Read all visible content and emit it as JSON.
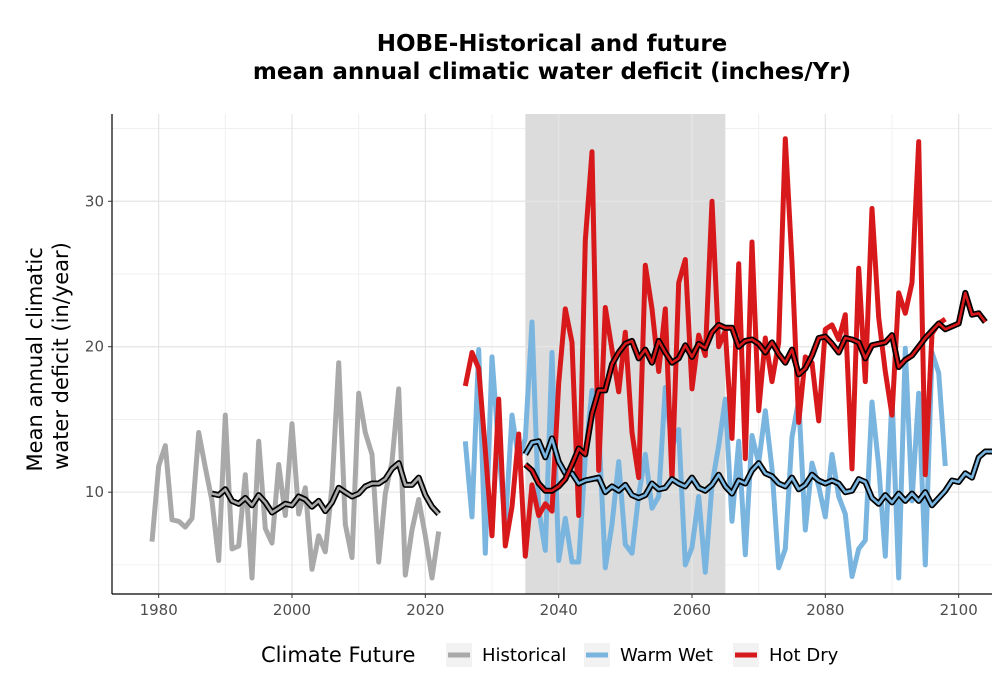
{
  "chart_data": {
    "type": "line",
    "title_lines": [
      "HOBE-Historical and future",
      "mean annual climatic water deficit (inches/Yr)"
    ],
    "xlabel": "",
    "ylabel_lines": [
      "Mean annual climatic",
      "water deficit (in/year)"
    ],
    "xlim": [
      1973,
      2105
    ],
    "ylim": [
      3,
      36
    ],
    "x_ticks": [
      1980,
      2000,
      2020,
      2040,
      2060,
      2080,
      2100
    ],
    "y_ticks": [
      10,
      20,
      30
    ],
    "grid": true,
    "shaded_period": [
      2035,
      2065
    ],
    "legend": {
      "title": "Climate Future",
      "placement": "bottom",
      "entries": [
        {
          "label": "Historical",
          "color": "#a9a9a9"
        },
        {
          "label": "Warm Wet",
          "color": "#7ab5df"
        },
        {
          "label": "Hot Dry",
          "color": "#d7191c"
        }
      ]
    },
    "series": [
      {
        "name": "Historical",
        "color": "#a9a9a9",
        "x_start": 1979,
        "values": [
          6.6,
          11.8,
          13.2,
          8.1,
          8.0,
          7.6,
          8.2,
          14.1,
          11.7,
          9.4,
          5.3,
          15.3,
          6.1,
          6.3,
          11.2,
          4.1,
          13.5,
          7.5,
          6.5,
          11.9,
          8.4,
          14.7,
          8.5,
          10.3,
          4.7,
          7.0,
          5.9,
          10.4,
          18.9,
          7.8,
          5.5,
          16.8,
          14.1,
          12.6,
          5.2,
          9.9,
          12.1,
          17.1,
          4.3,
          7.4,
          9.5,
          7.0,
          4.1,
          7.3
        ]
      },
      {
        "name": "Warm Wet",
        "color": "#7ab5df",
        "x_start": 2026,
        "values": [
          13.5,
          8.3,
          19.8,
          5.8,
          19.3,
          12.9,
          7.6,
          15.3,
          12.2,
          13.7,
          21.7,
          8.8,
          6.0,
          19.6,
          5.3,
          8.2,
          5.2,
          5.2,
          12.4,
          17.0,
          14.4,
          4.8,
          7.8,
          12.1,
          6.4,
          5.8,
          9.8,
          12.6,
          8.9,
          9.7,
          17.2,
          13.1,
          14.3,
          5.0,
          6.2,
          9.7,
          4.5,
          10.5,
          13.2,
          16.4,
          8.0,
          13.5,
          5.7,
          13.9,
          12.0,
          15.6,
          11.6,
          4.8,
          6.1,
          13.8,
          16.3,
          7.4,
          12.0,
          10.4,
          8.3,
          12.6,
          9.7,
          8.5,
          4.2,
          6.1,
          6.7,
          16.2,
          11.8,
          5.6,
          16.7,
          4.1,
          19.9,
          9.4,
          16.8,
          5.0,
          19.6,
          18.2,
          11.8
        ]
      },
      {
        "name": "Hot Dry",
        "color": "#d7191c",
        "x_start": 2026,
        "values": [
          17.3,
          19.6,
          18.5,
          12.9,
          7.0,
          16.4,
          6.3,
          9.0,
          14.0,
          5.6,
          10.5,
          8.4,
          9.2,
          8.7,
          17.5,
          22.6,
          20.3,
          8.4,
          27.3,
          33.4,
          11.5,
          22.7,
          19.8,
          16.9,
          21.0,
          14.1,
          11.0,
          25.6,
          22.6,
          18.3,
          22.6,
          10.8,
          24.4,
          26.0,
          17.1,
          20.8,
          19.4,
          30.0,
          20.0,
          21.1,
          13.7,
          25.7,
          12.3,
          27.2,
          15.6,
          20.6,
          17.6,
          20.3,
          34.3,
          25.8,
          14.8,
          19.3,
          18.9,
          14.9,
          21.2,
          21.5,
          20.5,
          22.2,
          11.6,
          25.4,
          17.6,
          29.5,
          22.0,
          18.3,
          15.3,
          23.7,
          22.3,
          24.4,
          34.1,
          11.2,
          20.9,
          21.6,
          21.9
        ]
      },
      {
        "name": "Historical rolling mean",
        "color": "#000000",
        "x_start": 1988,
        "values": [
          9.9,
          9.8,
          10.2,
          9.4,
          9.2,
          9.6,
          9.1,
          9.8,
          9.3,
          8.6,
          8.9,
          9.2,
          9.1,
          9.7,
          9.5,
          9.0,
          9.4,
          8.7,
          9.3,
          10.3,
          10.0,
          9.7,
          9.9,
          10.4,
          10.6,
          10.6,
          10.9,
          11.6,
          12.0,
          10.5,
          10.5,
          11.0,
          9.8,
          9.0,
          8.5
        ]
      },
      {
        "name": "Warm Wet rolling mean",
        "color": "#000000",
        "x_start": 2035,
        "values": [
          12.6,
          13.4,
          13.5,
          12.4,
          13.7,
          12.1,
          11.3,
          11.3,
          10.6,
          10.8,
          10.9,
          11.0,
          10.0,
          10.4,
          10.1,
          10.5,
          9.8,
          9.6,
          9.8,
          10.6,
          10.2,
          10.3,
          10.9,
          10.6,
          10.4,
          11.0,
          10.3,
          10.1,
          10.5,
          11.2,
          10.4,
          9.9,
          10.8,
          10.6,
          11.5,
          12.0,
          11.3,
          11.1,
          10.6,
          10.4,
          11.0,
          10.2,
          10.5,
          11.2,
          10.8,
          10.6,
          10.8,
          10.6,
          10.0,
          10.1,
          10.9,
          10.7,
          9.6,
          9.2,
          9.8,
          9.3,
          9.9,
          9.4,
          9.9,
          9.4,
          10.0,
          9.1,
          9.6,
          10.1,
          10.8,
          10.7,
          11.3,
          11.0,
          12.4,
          12.8,
          12.8
        ]
      },
      {
        "name": "Hot Dry rolling mean",
        "color": "#000000",
        "x_start": 2035,
        "values": [
          11.9,
          11.5,
          10.6,
          10.1,
          10.1,
          10.4,
          10.9,
          11.9,
          13.0,
          12.6,
          15.4,
          17.0,
          17.0,
          18.8,
          19.6,
          20.2,
          20.4,
          19.2,
          19.8,
          18.9,
          20.4,
          19.6,
          18.9,
          19.2,
          20.1,
          19.3,
          20.2,
          19.9,
          21.0,
          21.5,
          21.3,
          21.3,
          20.0,
          20.4,
          20.5,
          20.2,
          19.6,
          20.3,
          19.5,
          18.9,
          19.8,
          18.1,
          18.5,
          19.4,
          20.6,
          20.7,
          20.2,
          19.6,
          20.6,
          20.5,
          20.3,
          19.2,
          20.1,
          20.2,
          20.3,
          20.8,
          18.6,
          19.1,
          19.4,
          20.0,
          20.6,
          21.1,
          21.6,
          21.2,
          21.4,
          21.6,
          23.7,
          22.2,
          22.3,
          21.7
        ]
      }
    ]
  }
}
